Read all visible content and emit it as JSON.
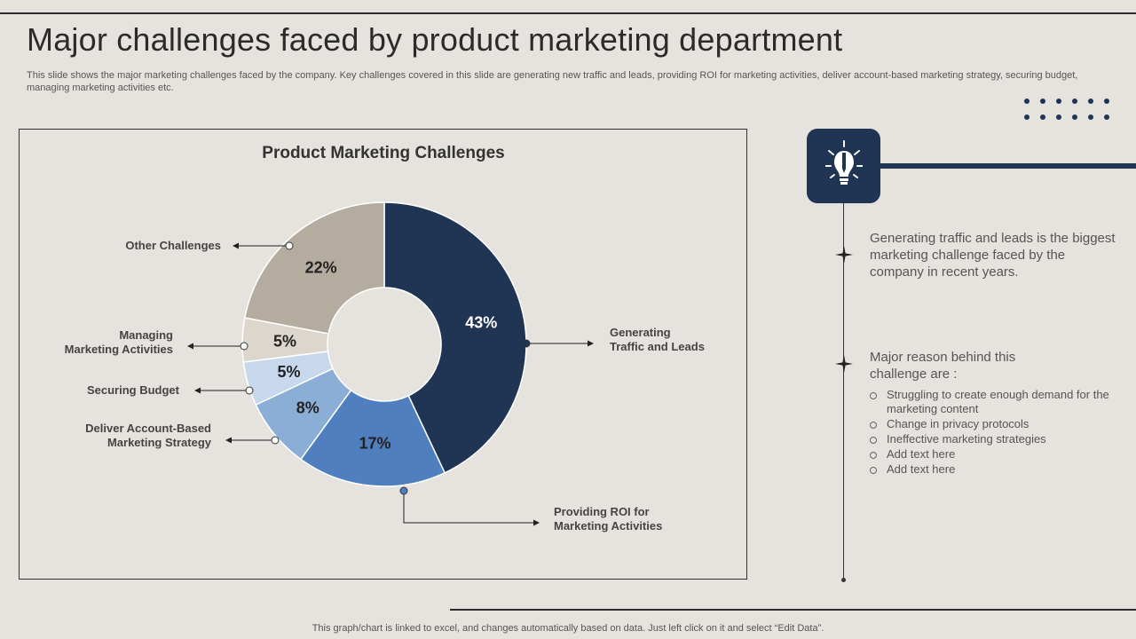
{
  "title": "Major challenges faced by product marketing department",
  "subtitle": "This slide shows the major marketing challenges faced by the company. Key challenges covered in this slide are generating new traffic and leads, providing ROI for marketing activities, deliver account-based marketing strategy, securing budget, managing marketing activities etc.",
  "chart_data": {
    "type": "pie",
    "style": "donut",
    "title": "Product Marketing Challenges",
    "categories": [
      "Generating Traffic and Leads",
      "Providing ROI for Marketing Activities",
      "Deliver Account-Based Marketing Strategy",
      "Securing Budget",
      "Managing Marketing Activities",
      "Other Challenges"
    ],
    "label_lines": [
      [
        "Generating",
        "Traffic and Leads"
      ],
      [
        "Providing ROI for",
        "Marketing Activities"
      ],
      [
        "Deliver Account-Based",
        "Marketing Strategy"
      ],
      [
        "Securing Budget"
      ],
      [
        "Managing",
        "Marketing Activities"
      ],
      [
        "Other Challenges"
      ]
    ],
    "values": [
      43,
      17,
      8,
      5,
      5,
      22
    ],
    "value_labels": [
      "43%",
      "17%",
      "8%",
      "5%",
      "5%",
      "22%"
    ],
    "colors": [
      "#1f3553",
      "#4f7fbf",
      "#8aaed6",
      "#c7d8ec",
      "#dcd6cd",
      "#b5aca0"
    ],
    "value_label_colors": [
      "#ffffff",
      "#222222",
      "#222222",
      "#222222",
      "#222222",
      "#222222"
    ]
  },
  "insight": {
    "main_text": "Generating traffic and leads is the biggest marketing challenge faced by the company in recent years.",
    "reason_heading": "Major reason behind this challenge are :",
    "reasons": [
      "Struggling to create enough demand for the marketing content",
      "Change in privacy protocols",
      "Ineffective marketing strategies",
      "Add text here",
      "Add text here"
    ]
  },
  "footer": "This graph/chart is linked to excel,  and changes automatically based on data. Just left click on it and select “Edit Data”.",
  "colors": {
    "accent": "#1f3553",
    "background": "#e6e3df"
  },
  "icons": {
    "insight_icon": "lightbulb-icon",
    "marker_icon": "sparkle-icon"
  }
}
